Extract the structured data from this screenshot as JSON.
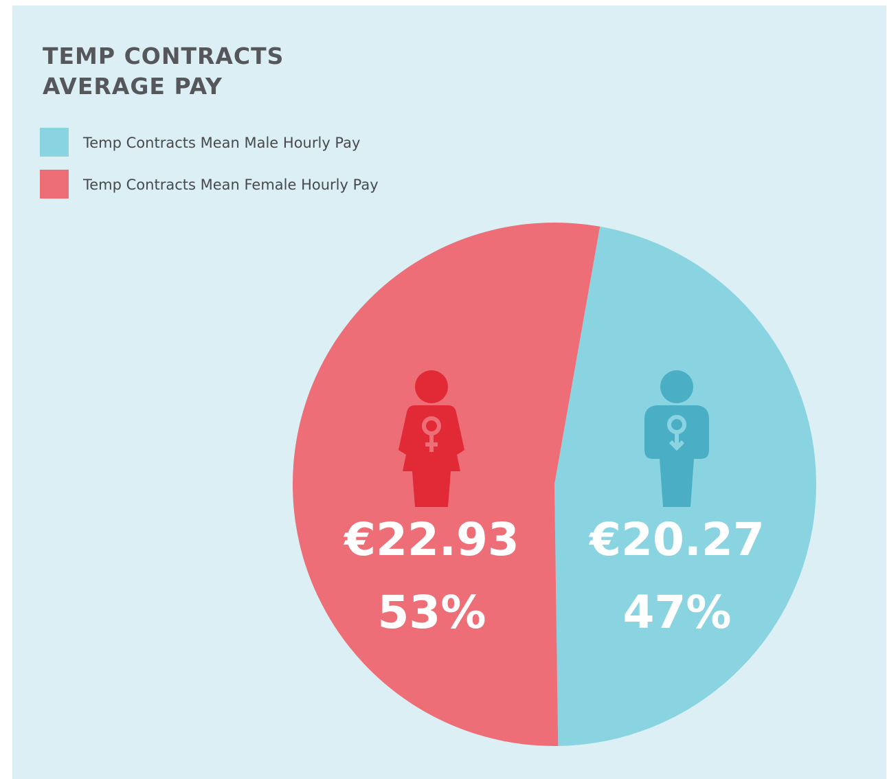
{
  "chart_data": {
    "type": "pie",
    "title": "TEMP CONTRACTS AVERAGE PAY",
    "categories": [
      "Temp Contracts Mean Male Hourly Pay",
      "Temp Contracts Mean Female Hourly Pay"
    ],
    "values": [
      47,
      53
    ],
    "value_labels": [
      "47%",
      "53%"
    ],
    "amounts": [
      20.27,
      22.93
    ],
    "amount_labels": [
      "€20.27",
      "€22.93"
    ],
    "colors": [
      "#8ad4e1",
      "#ed6e76"
    ]
  }
}
